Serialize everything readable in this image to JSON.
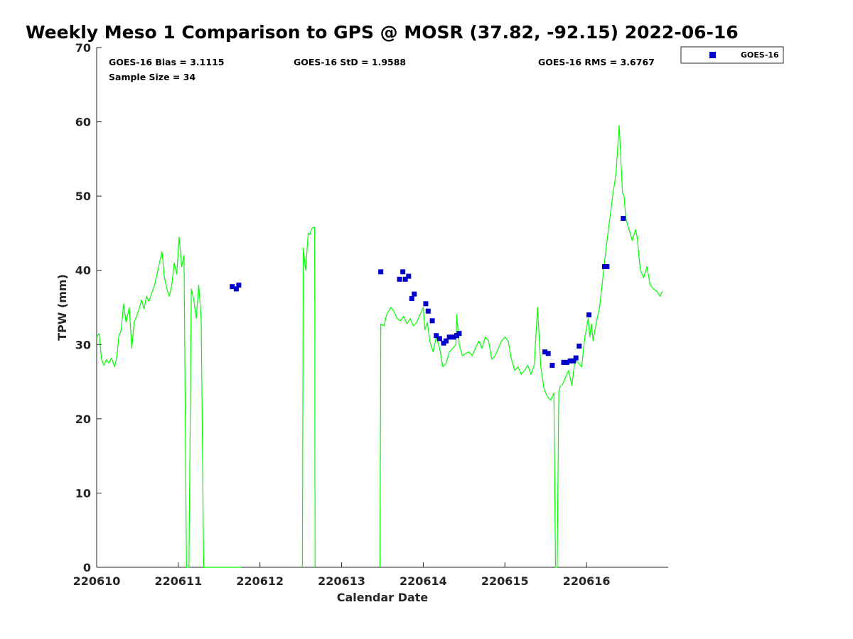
{
  "chart_data": {
    "type": "line",
    "title": "Weekly Meso 1 Comparison to GPS @ MOSR (37.82, -92.15) 2022-06-16",
    "xlabel": "Calendar Date",
    "ylabel": "TPW (mm)",
    "xlim": [
      220610,
      220617
    ],
    "ylim": [
      0,
      70
    ],
    "x_ticks": [
      "220610",
      "220611",
      "220612",
      "220613",
      "220614",
      "220615",
      "220616"
    ],
    "y_ticks": [
      "0",
      "10",
      "20",
      "30",
      "40",
      "50",
      "60",
      "70"
    ],
    "stats": {
      "bias": "GOES-16 Bias = 3.1115",
      "std": "GOES-16 StD = 1.9588",
      "rms": "GOES-16 RMS = 3.6767",
      "sample": "Sample Size = 34"
    },
    "legend": {
      "position": "top-right",
      "entries": [
        "GOES-16"
      ]
    },
    "colors": {
      "gps": "#00ff00",
      "goes": "#0000cc",
      "axis": "#262626"
    },
    "series": [
      {
        "kind": "line",
        "color": "#00ff00",
        "x": [
          220610.0,
          220610.03,
          220610.06,
          220610.09,
          220610.12,
          220610.15,
          220610.18,
          220610.22,
          220610.25,
          220610.27,
          220610.3,
          220610.33,
          220610.36,
          220610.4,
          220610.43,
          220610.46,
          220610.49,
          220610.52,
          220610.55,
          220610.58,
          220610.61,
          220610.64,
          220610.67,
          220610.71,
          220610.74,
          220610.77,
          220610.8,
          220610.83,
          220610.86,
          220610.89,
          220610.92,
          220610.95,
          220610.98,
          220611.01,
          220611.04,
          220611.07,
          220611.1,
          220611.13,
          220611.16,
          220611.19,
          220611.22,
          220611.25,
          220611.28,
          220611.31,
          220611.34,
          220611.37,
          220611.4,
          220611.43,
          220611.46,
          220611.49,
          220611.52,
          220611.54,
          220611.55,
          220611.59,
          220611.61,
          220611.62,
          220611.64,
          220611.66,
          220611.69,
          220611.71,
          220611.73,
          220611.74,
          220611.76,
          220611.77
        ],
        "y": [
          31,
          31.5,
          28,
          27.2,
          28,
          27.5,
          28.2,
          27,
          28.5,
          31,
          32,
          35.5,
          33,
          35,
          29.5,
          33,
          33.8,
          34.8,
          36,
          34.8,
          36.5,
          35.8,
          36.8,
          38,
          39.5,
          41,
          42.5,
          39,
          37.5,
          36.5,
          38,
          41,
          39.5,
          44.5,
          40.5,
          42,
          0,
          0,
          37.5,
          36,
          33.5,
          38,
          33.5,
          0,
          0,
          0,
          0,
          0,
          0,
          0,
          0,
          0,
          0,
          0,
          0,
          0,
          0,
          0,
          0,
          0,
          0,
          0,
          0,
          0
        ]
      },
      {
        "kind": "line",
        "color": "#00ff00",
        "x": [
          220612.52,
          220612.53,
          220612.56,
          220612.59,
          220612.61,
          220612.63,
          220612.65,
          220612.67,
          220612.675
        ],
        "y": [
          0,
          43,
          40,
          45,
          44.8,
          45.5,
          45.8,
          45.8,
          0
        ]
      },
      {
        "kind": "line",
        "color": "#00ff00",
        "x": [
          220613.47,
          220613.48,
          220613.52,
          220613.55,
          220613.6,
          220613.64,
          220613.68,
          220613.72,
          220613.76,
          220613.8,
          220613.84,
          220613.88,
          220613.92,
          220613.96,
          220614.0,
          220614.02,
          220614.05,
          220614.08,
          220614.12,
          220614.16,
          220614.2,
          220614.24,
          220614.28,
          220614.32,
          220614.36,
          220614.4,
          220614.41,
          220614.44,
          220614.48,
          220614.52,
          220614.56,
          220614.6,
          220614.64,
          220614.68,
          220614.72,
          220614.76,
          220614.8,
          220614.84,
          220614.88,
          220614.92,
          220614.96,
          220615.0,
          220615.04,
          220615.08,
          220615.12,
          220615.16,
          220615.2,
          220615.24,
          220615.28,
          220615.32,
          220615.36,
          220615.4,
          220615.44,
          220615.48,
          220615.52,
          220615.56,
          220615.6,
          220615.62,
          220615.64,
          220615.66,
          220615.68
        ],
        "y": [
          0,
          32.8,
          32.5,
          34,
          35,
          34.5,
          33.5,
          33.2,
          33.8,
          32.8,
          33.5,
          32.5,
          33,
          34,
          35,
          32,
          33,
          30.5,
          29,
          31,
          29.5,
          27,
          27.5,
          29,
          29.5,
          30,
          34,
          30,
          28.5,
          28.8,
          29,
          28.5,
          29.5,
          30.5,
          29.5,
          31,
          30.5,
          28,
          28.5,
          29.5,
          30.5,
          31,
          30.5,
          28,
          26.5,
          27,
          26,
          26.5,
          27.2,
          26,
          27.2,
          35,
          27,
          24,
          23,
          22.5,
          23.5,
          0,
          0,
          23.5,
          24.5
        ]
      },
      {
        "kind": "line",
        "color": "#00ff00",
        "x": [
          220615.7,
          220615.74,
          220615.78,
          220615.82,
          220615.86,
          220615.9,
          220615.94,
          220615.98,
          220616.02,
          220616.04,
          220616.06,
          220616.08,
          220616.12,
          220616.16,
          220616.2,
          220616.24,
          220616.28,
          220616.32,
          220616.36,
          220616.4,
          220616.44,
          220616.46,
          220616.48,
          220616.52,
          220616.56,
          220616.6,
          220616.62,
          220616.64,
          220616.66,
          220616.7,
          220616.74,
          220616.78,
          220616.82,
          220616.86,
          220616.9,
          220616.93
        ],
        "y": [
          24.5,
          25.5,
          26.5,
          24.5,
          28,
          27.5,
          27,
          31,
          33.5,
          31,
          32.8,
          30.5,
          33,
          35,
          39,
          43,
          46.5,
          50,
          53,
          59.5,
          50.5,
          50,
          47,
          45.5,
          44,
          45.5,
          44.5,
          42,
          40,
          39,
          40.5,
          38,
          37.5,
          37.2,
          36.5,
          37.2
        ]
      },
      {
        "name": "GOES-16",
        "kind": "scatter",
        "color": "#0000cc",
        "x": [
          220611.66,
          220611.71,
          220611.74,
          220613.48,
          220613.71,
          220613.75,
          220613.78,
          220613.82,
          220613.86,
          220613.89,
          220614.03,
          220614.06,
          220614.11,
          220614.16,
          220614.2,
          220614.25,
          220614.28,
          220614.32,
          220614.37,
          220614.41,
          220614.44,
          220615.49,
          220615.53,
          220615.58,
          220615.72,
          220615.76,
          220615.8,
          220615.84,
          220615.87,
          220615.91,
          220616.03,
          220616.22,
          220616.25,
          220616.45
        ],
        "y": [
          37.8,
          37.5,
          38,
          39.8,
          38.8,
          39.8,
          38.8,
          39.2,
          36.2,
          36.8,
          35.5,
          34.5,
          33.2,
          31.2,
          30.8,
          30.2,
          30.5,
          31,
          31,
          31.2,
          31.5,
          29,
          28.8,
          27.2,
          27.6,
          27.6,
          27.8,
          27.8,
          28.2,
          29.8,
          34,
          40.5,
          40.5,
          47
        ]
      }
    ]
  }
}
